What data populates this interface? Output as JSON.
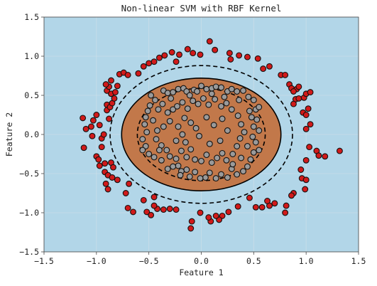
{
  "chart_data": {
    "type": "scatter",
    "title": "Non-linear SVM with RBF Kernel",
    "xlabel": "Feature 1",
    "ylabel": "Feature 2",
    "xlim": [
      -1.5,
      1.5
    ],
    "ylim": [
      -1.5,
      1.5
    ],
    "xticks": [
      -1.5,
      -1.0,
      -0.5,
      0.0,
      0.5,
      1.0,
      1.5
    ],
    "yticks": [
      -1.5,
      -1.0,
      -0.5,
      0.0,
      0.5,
      1.0,
      1.5
    ],
    "xtick_labels": [
      "−1.5",
      "−1.0",
      "−0.5",
      "0.0",
      "0.5",
      "1.0",
      "1.5"
    ],
    "ytick_labels": [
      "−1.5",
      "−1.0",
      "−0.5",
      "0.0",
      "0.5",
      "1.0",
      "1.5"
    ],
    "grid": true,
    "colors": {
      "outer_region": "#b2d6e8",
      "inner_region": "#c2784a",
      "outer_class_point": "#d11a1a",
      "inner_class_point": "#9a9a9a",
      "point_edge": "#111111",
      "boundary": "#000000"
    },
    "decision_boundary": {
      "center": [
        0.0,
        0.0
      ],
      "rx": 0.76,
      "ry": 0.72
    },
    "margin_outer": {
      "center": [
        0.0,
        0.0
      ],
      "rx": 0.87,
      "ry": 0.88
    },
    "margin_inner": {
      "center": [
        0.0,
        0.0
      ],
      "rx": 0.61,
      "ry": 0.59
    },
    "series": [
      {
        "class": "outer",
        "color": "#d11a1a",
        "points": [
          [
            -1.13,
            0.21
          ],
          [
            -1.1,
            0.07
          ],
          [
            -1.12,
            -0.17
          ],
          [
            -1.05,
            0.1
          ],
          [
            -1.04,
            -0.02
          ],
          [
            -1.03,
            0.18
          ],
          [
            -1.0,
            0.25
          ],
          [
            -0.97,
            0.12
          ],
          [
            -0.95,
            -0.05
          ],
          [
            -0.93,
            0.0
          ],
          [
            -0.95,
            -0.16
          ],
          [
            -1.0,
            -0.28
          ],
          [
            -0.98,
            -0.32
          ],
          [
            -0.97,
            -0.4
          ],
          [
            -0.92,
            -0.48
          ],
          [
            -0.92,
            -0.37
          ],
          [
            -0.89,
            -0.52
          ],
          [
            -0.86,
            -0.36
          ],
          [
            -0.91,
            -0.63
          ],
          [
            -0.89,
            -0.7
          ],
          [
            -0.85,
            -0.55
          ],
          [
            -0.9,
            0.31
          ],
          [
            -0.9,
            0.38
          ],
          [
            -0.87,
            0.35
          ],
          [
            -0.85,
            0.4
          ],
          [
            -0.86,
            0.52
          ],
          [
            -0.9,
            0.56
          ],
          [
            -0.88,
            0.61
          ],
          [
            -0.91,
            0.64
          ],
          [
            -0.86,
            0.69
          ],
          [
            -0.82,
            0.54
          ],
          [
            -0.83,
            0.46
          ],
          [
            -0.78,
            0.77
          ],
          [
            -0.74,
            0.79
          ],
          [
            -0.7,
            0.76
          ],
          [
            -0.6,
            0.78
          ],
          [
            -0.55,
            0.87
          ],
          [
            -0.5,
            0.91
          ],
          [
            -0.45,
            0.93
          ],
          [
            -0.4,
            0.98
          ],
          [
            -0.35,
            1.01
          ],
          [
            -0.28,
            1.05
          ],
          [
            -0.21,
            1.02
          ],
          [
            -0.13,
            1.09
          ],
          [
            -0.08,
            1.04
          ],
          [
            -0.01,
            1.02
          ],
          [
            0.08,
            1.19
          ],
          [
            0.13,
            1.08
          ],
          [
            0.27,
            1.04
          ],
          [
            0.36,
            1.01
          ],
          [
            0.44,
            0.99
          ],
          [
            0.54,
            0.97
          ],
          [
            0.59,
            0.84
          ],
          [
            0.65,
            0.87
          ],
          [
            0.76,
            0.76
          ],
          [
            0.8,
            0.76
          ],
          [
            0.84,
            0.64
          ],
          [
            0.86,
            0.59
          ],
          [
            0.91,
            0.58
          ],
          [
            0.93,
            0.61
          ],
          [
            0.88,
            0.55
          ],
          [
            0.9,
            0.45
          ],
          [
            0.88,
            0.39
          ],
          [
            0.93,
            0.46
          ],
          [
            0.98,
            0.47
          ],
          [
            1.0,
            0.52
          ],
          [
            1.04,
            0.54
          ],
          [
            0.97,
            0.28
          ],
          [
            1.02,
            0.33
          ],
          [
            1.0,
            0.25
          ],
          [
            1.04,
            0.13
          ],
          [
            1.0,
            0.07
          ],
          [
            1.03,
            -0.16
          ],
          [
            1.1,
            -0.21
          ],
          [
            1.12,
            -0.27
          ],
          [
            1.18,
            -0.28
          ],
          [
            1.32,
            -0.21
          ],
          [
            1.0,
            -0.33
          ],
          [
            0.95,
            -0.45
          ],
          [
            0.96,
            -0.56
          ],
          [
            1.0,
            -0.58
          ],
          [
            0.99,
            -0.7
          ],
          [
            0.88,
            -0.75
          ],
          [
            0.86,
            -0.78
          ],
          [
            0.81,
            -0.91
          ],
          [
            0.8,
            -1.0
          ],
          [
            0.7,
            -0.88
          ],
          [
            0.65,
            -0.91
          ],
          [
            0.63,
            -0.85
          ],
          [
            0.58,
            -0.93
          ],
          [
            0.52,
            -0.93
          ],
          [
            0.46,
            -0.81
          ],
          [
            0.35,
            -0.92
          ],
          [
            0.26,
            -0.99
          ],
          [
            0.2,
            -1.04
          ],
          [
            0.17,
            -1.09
          ],
          [
            0.14,
            -1.04
          ],
          [
            0.09,
            -1.11
          ],
          [
            0.07,
            -1.06
          ],
          [
            -0.01,
            -1.0
          ],
          [
            -0.09,
            -1.11
          ],
          [
            -0.1,
            -1.2
          ],
          [
            -0.24,
            -0.96
          ],
          [
            -0.3,
            -0.95
          ],
          [
            -0.36,
            -0.96
          ],
          [
            -0.42,
            -0.95
          ],
          [
            -0.45,
            -0.8
          ],
          [
            -0.45,
            -0.91
          ],
          [
            -0.48,
            -1.03
          ],
          [
            -0.52,
            -0.99
          ],
          [
            -0.55,
            -0.84
          ],
          [
            -0.65,
            -0.99
          ],
          [
            -0.7,
            -0.94
          ],
          [
            -0.72,
            -0.75
          ],
          [
            -0.69,
            -0.63
          ],
          [
            -0.8,
            -0.58
          ],
          [
            -0.84,
            -0.42
          ],
          [
            -0.88,
            0.2
          ],
          [
            -0.8,
            0.62
          ],
          [
            0.28,
            0.96
          ],
          [
            -0.24,
            0.93
          ]
        ]
      },
      {
        "class": "inner",
        "color": "#9a9a9a",
        "points": [
          [
            -0.48,
            0.5
          ],
          [
            -0.44,
            0.44
          ],
          [
            -0.36,
            0.56
          ],
          [
            -0.32,
            0.53
          ],
          [
            -0.27,
            0.54
          ],
          [
            -0.22,
            0.58
          ],
          [
            -0.17,
            0.59
          ],
          [
            -0.14,
            0.55
          ],
          [
            -0.11,
            0.5
          ],
          [
            -0.07,
            0.57
          ],
          [
            -0.04,
            0.55
          ],
          [
            0.0,
            0.62
          ],
          [
            0.05,
            0.58
          ],
          [
            0.1,
            0.59
          ],
          [
            0.14,
            0.61
          ],
          [
            0.19,
            0.6
          ],
          [
            0.25,
            0.55
          ],
          [
            0.29,
            0.58
          ],
          [
            0.34,
            0.55
          ],
          [
            0.4,
            0.56
          ],
          [
            0.45,
            0.48
          ],
          [
            0.5,
            0.44
          ],
          [
            0.52,
            0.32
          ],
          [
            0.48,
            0.22
          ],
          [
            0.53,
            0.19
          ],
          [
            0.5,
            0.1
          ],
          [
            0.55,
            0.05
          ],
          [
            0.49,
            -0.03
          ],
          [
            0.52,
            -0.1
          ],
          [
            0.55,
            -0.2
          ],
          [
            0.5,
            -0.23
          ],
          [
            0.47,
            -0.32
          ],
          [
            0.44,
            -0.41
          ],
          [
            0.4,
            -0.47
          ],
          [
            0.34,
            -0.51
          ],
          [
            0.29,
            -0.44
          ],
          [
            0.25,
            -0.55
          ],
          [
            0.19,
            -0.51
          ],
          [
            0.14,
            -0.56
          ],
          [
            0.08,
            -0.49
          ],
          [
            0.04,
            -0.55
          ],
          [
            -0.01,
            -0.56
          ],
          [
            -0.06,
            -0.48
          ],
          [
            -0.11,
            -0.54
          ],
          [
            -0.14,
            -0.45
          ],
          [
            -0.19,
            -0.47
          ],
          [
            -0.22,
            -0.4
          ],
          [
            -0.27,
            -0.41
          ],
          [
            -0.32,
            -0.44
          ],
          [
            -0.38,
            -0.33
          ],
          [
            -0.45,
            -0.29
          ],
          [
            -0.5,
            -0.25
          ],
          [
            -0.53,
            -0.15
          ],
          [
            -0.56,
            -0.06
          ],
          [
            -0.52,
            0.03
          ],
          [
            -0.54,
            0.13
          ],
          [
            -0.53,
            0.22
          ],
          [
            -0.51,
            0.3
          ],
          [
            -0.49,
            0.37
          ],
          [
            -0.41,
            0.32
          ],
          [
            -0.37,
            0.39
          ],
          [
            -0.32,
            0.28
          ],
          [
            -0.27,
            0.32
          ],
          [
            -0.3,
            0.17
          ],
          [
            -0.36,
            0.1
          ],
          [
            -0.42,
            0.05
          ],
          [
            -0.43,
            -0.06
          ],
          [
            -0.38,
            -0.14
          ],
          [
            -0.33,
            -0.2
          ],
          [
            -0.3,
            -0.28
          ],
          [
            -0.24,
            -0.31
          ],
          [
            -0.19,
            -0.21
          ],
          [
            -0.14,
            -0.29
          ],
          [
            -0.1,
            -0.19
          ],
          [
            -0.06,
            -0.32
          ],
          [
            0.0,
            -0.34
          ],
          [
            0.05,
            -0.26
          ],
          [
            0.1,
            -0.36
          ],
          [
            0.15,
            -0.3
          ],
          [
            0.2,
            -0.24
          ],
          [
            0.24,
            -0.33
          ],
          [
            0.3,
            -0.25
          ],
          [
            0.34,
            -0.15
          ],
          [
            0.37,
            -0.05
          ],
          [
            0.41,
            0.03
          ],
          [
            0.38,
            0.13
          ],
          [
            0.35,
            0.24
          ],
          [
            0.29,
            0.32
          ],
          [
            0.24,
            0.4
          ],
          [
            0.19,
            0.36
          ],
          [
            0.13,
            0.45
          ],
          [
            0.07,
            0.38
          ],
          [
            0.02,
            0.46
          ],
          [
            -0.03,
            0.39
          ],
          [
            -0.08,
            0.43
          ],
          [
            -0.13,
            0.33
          ],
          [
            -0.18,
            0.41
          ],
          [
            -0.23,
            0.36
          ],
          [
            -0.16,
            0.21
          ],
          [
            -0.1,
            0.15
          ],
          [
            -0.22,
            0.1
          ],
          [
            -0.18,
            0.0
          ],
          [
            -0.24,
            -0.08
          ],
          [
            -0.15,
            -0.1
          ],
          [
            0.05,
            0.22
          ],
          [
            0.12,
            0.12
          ],
          [
            0.2,
            0.2
          ],
          [
            0.25,
            0.05
          ],
          [
            0.18,
            -0.08
          ],
          [
            0.08,
            -0.12
          ],
          [
            -0.02,
            -0.02
          ],
          [
            -0.05,
            0.08
          ],
          [
            0.3,
            -0.38
          ],
          [
            0.36,
            0.44
          ],
          [
            -0.4,
            -0.2
          ],
          [
            -0.46,
            0.18
          ],
          [
            0.44,
            -0.15
          ],
          [
            0.46,
            0.3
          ],
          [
            -0.29,
            0.46
          ],
          [
            0.38,
            -0.3
          ],
          [
            0.1,
            0.52
          ],
          [
            -0.2,
            -0.52
          ],
          [
            0.55,
            0.35
          ],
          [
            -0.56,
            -0.2
          ],
          [
            0.22,
            0.48
          ]
        ]
      }
    ]
  }
}
